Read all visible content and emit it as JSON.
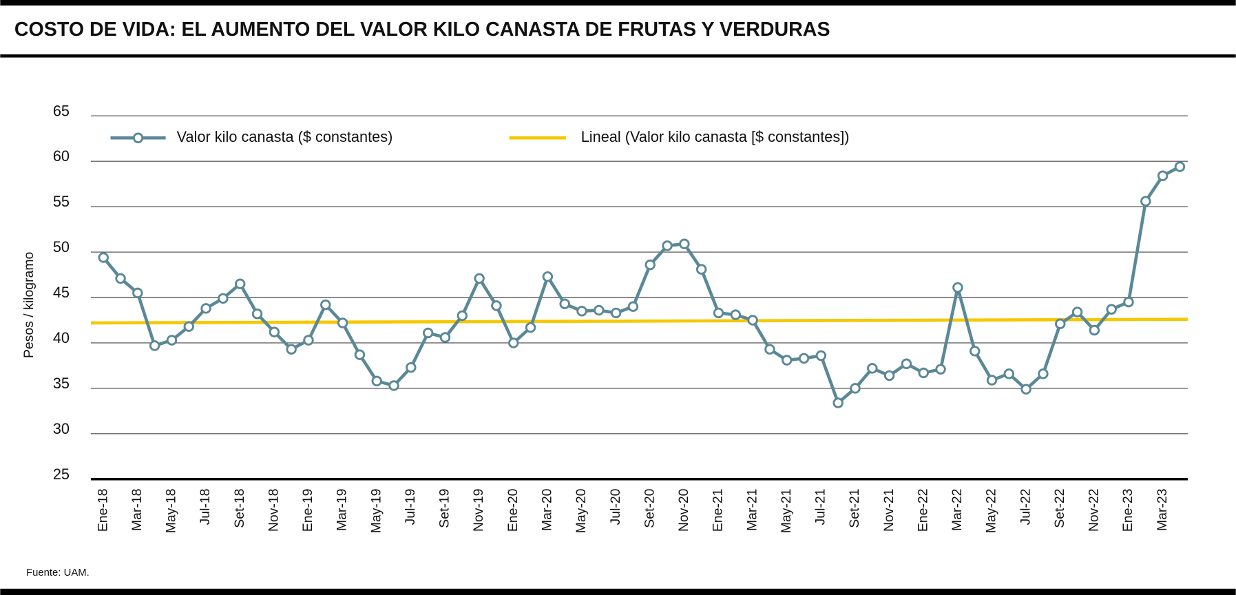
{
  "chart_data": {
    "type": "line",
    "title": "COSTO DE VIDA: EL AUMENTO DEL VALOR KILO CANASTA DE FRUTAS Y VERDURAS",
    "y_label": "Pesos / kilogramo",
    "source": "Fuente: UAM.",
    "categories": [
      "Ene-18",
      null,
      "Mar-18",
      null,
      "May-18",
      null,
      "Jul-18",
      null,
      "Set-18",
      null,
      "Nov-18",
      null,
      "Ene-19",
      null,
      "Mar-19",
      null,
      "May-19",
      null,
      "Jul-19",
      null,
      "Set-19",
      null,
      "Nov-19",
      null,
      "Ene-20",
      null,
      "Mar-20",
      null,
      "May-20",
      null,
      "Jul-20",
      null,
      "Set-20",
      null,
      "Nov-20",
      null,
      "Ene-21",
      null,
      "Mar-21",
      null,
      "May-21",
      null,
      "Jul-21",
      null,
      "Set-21",
      null,
      "Nov-21",
      null,
      "Ene-22",
      null,
      "Mar-22",
      null,
      "May-22",
      null,
      "Jul-22",
      null,
      "Set-22",
      null,
      "Nov-22",
      null,
      "Ene-23",
      null,
      "Mar-23",
      null
    ],
    "series": [
      {
        "name": "Valor kilo canasta ($ constantes)",
        "color": "#5a8896",
        "values": [
          49.4,
          47.1,
          45.5,
          39.7,
          40.3,
          41.8,
          43.8,
          44.9,
          46.5,
          43.2,
          41.2,
          39.3,
          40.3,
          44.2,
          42.2,
          38.7,
          35.8,
          35.3,
          37.3,
          41.1,
          40.6,
          43.0,
          47.1,
          44.1,
          40.0,
          41.7,
          47.3,
          44.3,
          43.5,
          43.6,
          43.3,
          44.0,
          48.6,
          50.7,
          50.9,
          48.1,
          43.3,
          43.1,
          42.5,
          39.3,
          38.1,
          38.3,
          38.6,
          33.4,
          35.0,
          37.2,
          36.4,
          37.7,
          36.7,
          37.1,
          46.1,
          39.1,
          35.9,
          36.6,
          34.9,
          36.6,
          42.1,
          43.4,
          41.4,
          43.7,
          44.5,
          55.6,
          58.4,
          59.4
        ]
      }
    ],
    "trend": {
      "name": "Lineal (Valor kilo canasta [$ constantes])",
      "color": "#f5c800",
      "values": [
        42.2,
        42.6
      ]
    },
    "ylim": [
      25,
      65
    ],
    "yticks": [
      25,
      30,
      35,
      40,
      45,
      50,
      55,
      60,
      65
    ],
    "grid": true
  }
}
